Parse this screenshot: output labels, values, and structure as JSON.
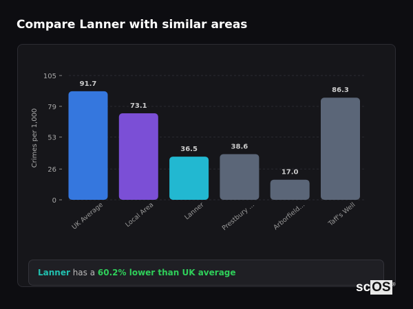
{
  "title": "Compare Lanner with similar areas",
  "chart_data": {
    "type": "bar",
    "title": "Compare Lanner with similar areas",
    "ylabel": "Crimes per 1,000",
    "xlabel": "",
    "ylim": [
      0,
      105
    ],
    "yticks": [
      0,
      26,
      53,
      79,
      105
    ],
    "grid": true,
    "categories": [
      "UK Average",
      "Local Area",
      "Lanner",
      "Prestbury ...",
      "Arborfield...",
      "Taff's Well"
    ],
    "values": [
      91.7,
      73.1,
      36.5,
      38.6,
      17.0,
      86.3
    ],
    "value_labels": [
      "91.7",
      "73.1",
      "36.5",
      "38.6",
      "17.0",
      "86.3"
    ],
    "colors": [
      "#3577de",
      "#7b4fd6",
      "#22b8d1",
      "#5b6678",
      "#5b6678",
      "#5b6678"
    ]
  },
  "footer": {
    "area": "Lanner",
    "middle": " has a ",
    "stat": "60.2% lower than UK average"
  },
  "logo": {
    "sc": "sc",
    "os": "OS",
    "mark": "®"
  }
}
